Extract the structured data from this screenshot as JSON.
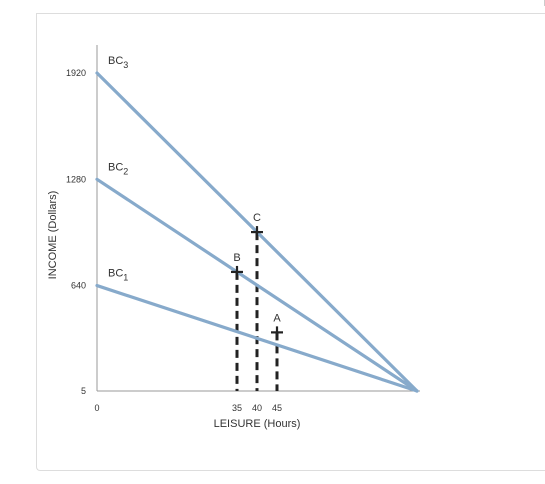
{
  "chart_data": {
    "type": "line",
    "xlabel": "LEISURE (Hours)",
    "ylabel": "INCOME (Dollars)",
    "x_ticks": [
      "0",
      "35",
      "40",
      "45"
    ],
    "x_tick_values": [
      0,
      35,
      40,
      45
    ],
    "y_ticks": [
      "5",
      "640",
      "1280",
      "1920"
    ],
    "y_tick_values": [
      5,
      640,
      1280,
      1920
    ],
    "xlim": [
      0,
      80
    ],
    "ylim": [
      5,
      1920
    ],
    "series": [
      {
        "name": "BC3",
        "base": "BC",
        "sub": "3",
        "x": [
          0,
          80
        ],
        "y": [
          1920,
          5
        ]
      },
      {
        "name": "BC2",
        "base": "BC",
        "sub": "2",
        "x": [
          0,
          80
        ],
        "y": [
          1280,
          5
        ]
      },
      {
        "name": "BC1",
        "base": "BC",
        "sub": "1",
        "x": [
          0,
          80
        ],
        "y": [
          640,
          5
        ]
      }
    ],
    "points": [
      {
        "label": "A",
        "x": 45,
        "y": 358
      },
      {
        "label": "B",
        "x": 35,
        "y": 722
      },
      {
        "label": "C",
        "x": 40,
        "y": 962
      }
    ],
    "line_color": "#87aacb"
  }
}
